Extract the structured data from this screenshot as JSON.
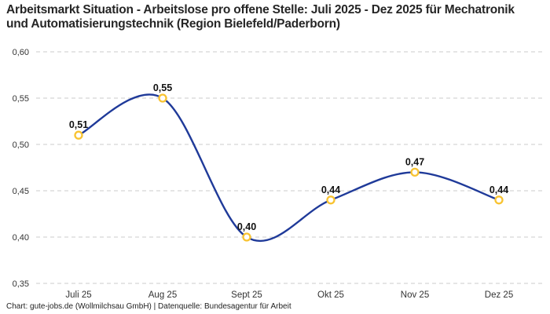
{
  "title": "Arbeitsmarkt Situation - Arbeitslose pro offene Stelle: Juli 2025 - Dez 2025 für Mechatronik und Automatisierungstechnik (Region Bielefeld/Paderborn)",
  "footer": "Chart: gute-jobs.de (Wollmilchsau GmbH) | Datenquelle: Bundesagentur für Arbeit",
  "colors": {
    "line": "#1f3a99",
    "marker_ring": "#f8c331",
    "marker_fill": "#ffffff",
    "grid": "#cbcbcb",
    "title_text": "#262626",
    "axis_text": "#333333",
    "data_label_text": "#111111",
    "background": "#ffffff"
  },
  "chart_data": {
    "type": "line",
    "title": "Arbeitsmarkt Situation - Arbeitslose pro offene Stelle: Juli 2025 - Dez 2025 für Mechatronik und Automatisierungstechnik (Region Bielefeld/Paderborn)",
    "categories": [
      "Juli 25",
      "Aug 25",
      "Sept 25",
      "Okt 25",
      "Nov 25",
      "Dez 25"
    ],
    "values": [
      0.51,
      0.55,
      0.4,
      0.44,
      0.47,
      0.44
    ],
    "value_labels": [
      "0,51",
      "0,55",
      "0,40",
      "0,44",
      "0,47",
      "0,44"
    ],
    "xlabel": "",
    "ylabel": "",
    "ylim": [
      0.35,
      0.6
    ],
    "yticks": [
      0.35,
      0.4,
      0.45,
      0.5,
      0.55,
      0.6
    ],
    "ytick_labels": [
      "0,35",
      "0,40",
      "0,45",
      "0,50",
      "0,55",
      "0,60"
    ],
    "grid": "dashed-horizontal",
    "curve": "smooth",
    "markers": "open-circle",
    "legend": "none"
  }
}
